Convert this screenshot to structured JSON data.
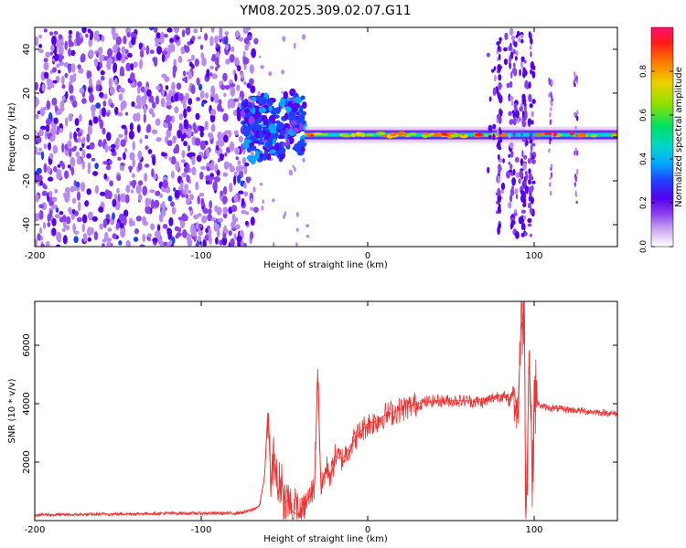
{
  "title": "YM08.2025.309.02.07.G11",
  "colors": {
    "line": "#ee3333",
    "axis": "#000000",
    "background": "#ffffff",
    "colormap": [
      "#ffffff",
      "#e0c6f7",
      "#b98af0",
      "#8a3ff0",
      "#6a00ee",
      "#2040ff",
      "#00c8ff",
      "#00e070",
      "#b8e000",
      "#ffb000",
      "#ff2020",
      "#ff1070"
    ]
  },
  "chart_data": [
    {
      "type": "heatmap",
      "title": "YM08.2025.309.02.07.G11",
      "xlabel": "Height of straight line (km)",
      "ylabel": "Frequency (Hz)",
      "xlim": [
        -200,
        150
      ],
      "ylim": [
        -50,
        50
      ],
      "xticks": [
        -200,
        -100,
        0,
        100
      ],
      "yticks": [
        -40,
        -20,
        0,
        20,
        40
      ],
      "colorbar": {
        "label": "Normalized spectral amplitude",
        "range": [
          0.0,
          1.0
        ],
        "ticks": [
          0.0,
          0.2,
          0.4,
          0.6,
          0.8
        ]
      },
      "features": [
        {
          "name": "diffuse noise region",
          "x_range": [
            -200,
            -75
          ],
          "freq_range": [
            -50,
            50
          ],
          "amplitude": 0.15
        },
        {
          "name": "dense cluster",
          "x_range": [
            -75,
            -38
          ],
          "freq_range": [
            -10,
            20
          ],
          "amplitude": 0.3
        },
        {
          "name": "Doppler line",
          "x_range": [
            -38,
            150
          ],
          "freq_center": 1,
          "amplitude": 0.7
        },
        {
          "name": "scattered streaks",
          "x_range": [
            72,
            100
          ],
          "freq_range": [
            -45,
            48
          ],
          "amplitude": 0.2
        },
        {
          "name": "vertical streaks",
          "x_positions": [
            110,
            125
          ],
          "freq_range": [
            -30,
            30
          ],
          "amplitude": 0.15
        }
      ]
    },
    {
      "type": "line",
      "xlabel": "Height of straight line (km)",
      "ylabel": "SNR (10 * v/v)",
      "xlim": [
        -200,
        150
      ],
      "ylim": [
        0,
        7500
      ],
      "xticks": [
        -200,
        -100,
        0,
        100
      ],
      "yticks": [
        2000,
        4000,
        6000
      ],
      "series": [
        {
          "name": "SNR",
          "x": [
            -200,
            -180,
            -160,
            -140,
            -120,
            -100,
            -90,
            -80,
            -75,
            -70,
            -65,
            -62,
            -60,
            -58,
            -56,
            -54,
            -52,
            -50,
            -48,
            -45,
            -42,
            -40,
            -38,
            -36,
            -34,
            -32,
            -30,
            -28,
            -26,
            -24,
            -22,
            -20,
            -15,
            -10,
            -5,
            0,
            5,
            10,
            15,
            20,
            25,
            30,
            40,
            50,
            60,
            70,
            75,
            80,
            85,
            88,
            90,
            92,
            94,
            95,
            96,
            97,
            98,
            99,
            100,
            101,
            102,
            105,
            110,
            120,
            130,
            140,
            150
          ],
          "y": [
            200,
            200,
            220,
            230,
            250,
            250,
            250,
            250,
            280,
            350,
            500,
            1500,
            3700,
            1200,
            2300,
            900,
            1500,
            600,
            700,
            300,
            200,
            250,
            500,
            700,
            900,
            1200,
            5200,
            1000,
            1600,
            1800,
            1500,
            2200,
            2100,
            2600,
            3000,
            3300,
            3400,
            3600,
            3700,
            3800,
            3900,
            4000,
            4100,
            4100,
            4100,
            4050,
            4200,
            4300,
            4100,
            4500,
            3500,
            6500,
            7400,
            300,
            2500,
            5800,
            3900,
            1000,
            4500,
            4200,
            4000,
            3900,
            3850,
            3800,
            3750,
            3700,
            3650
          ]
        }
      ]
    }
  ]
}
